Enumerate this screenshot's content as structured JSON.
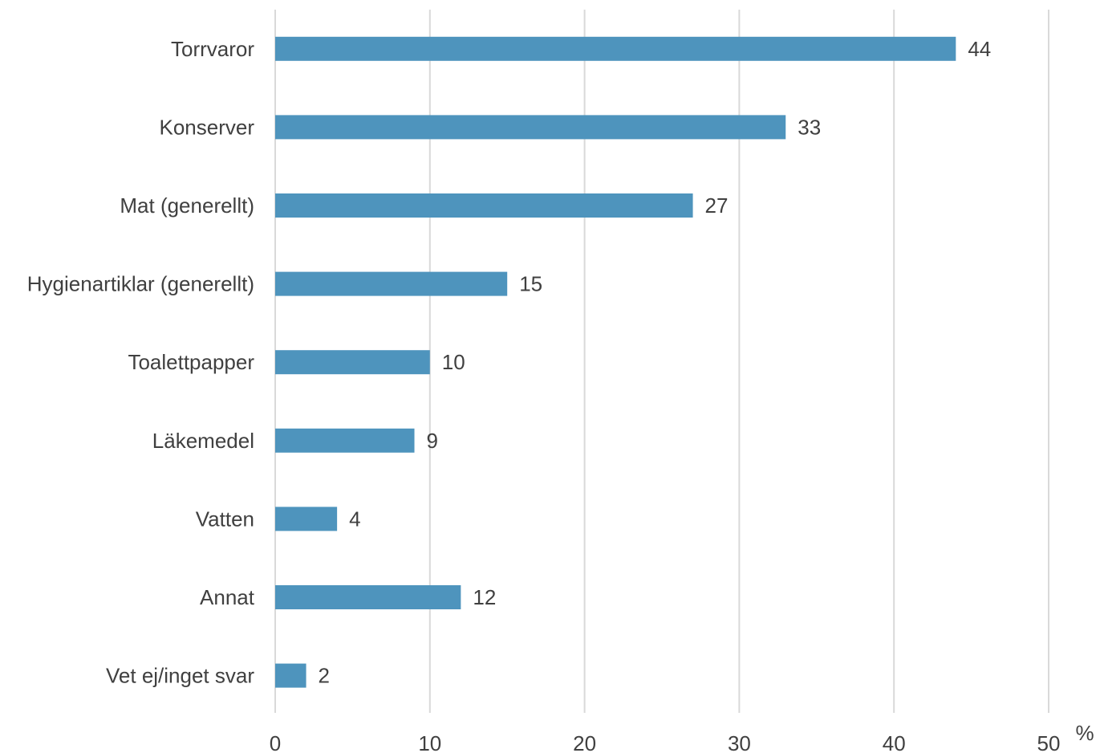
{
  "chart_data": {
    "type": "bar",
    "orientation": "horizontal",
    "categories": [
      "Torrvaror",
      "Konserver",
      "Mat (generellt)",
      "Hygienartiklar (generellt)",
      "Toalettpapper",
      "Läkemedel",
      "Vatten",
      "Annat",
      "Vet ej/inget svar"
    ],
    "values": [
      44,
      33,
      27,
      15,
      10,
      9,
      4,
      12,
      2
    ],
    "value_labels": [
      "44",
      "33",
      "27",
      "15",
      "10",
      "9",
      "4",
      "12",
      "2"
    ],
    "xlim": [
      0,
      50
    ],
    "x_ticks": [
      0,
      10,
      20,
      30,
      40,
      50
    ],
    "x_tick_labels": [
      "0",
      "10",
      "20",
      "30",
      "40",
      "50"
    ],
    "x_unit": "%",
    "grid": "vertical",
    "legend": "none",
    "bar_color": "#4e94bd",
    "grid_color": "#d9d9d9",
    "text_color": "#404040"
  }
}
